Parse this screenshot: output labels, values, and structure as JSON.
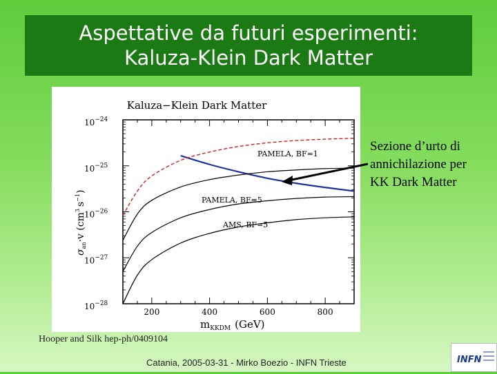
{
  "slide": {
    "title_line1": "Aspettative da futuri esperimenti:",
    "title_line2": "Kaluza-Klein Dark Matter",
    "annotation_line1": "Sezione d’urto di",
    "annotation_line2": "annichilazione per",
    "annotation_line3": "KK Dark Matter",
    "credit": "Hooper and Silk hep-ph/0409104",
    "footer": "Catania, 2005-03-31 - Mirko Boezio - INFN Trieste",
    "logo_text": "INFN"
  },
  "colors": {
    "title_bg": "#1c7a14",
    "blue_curve": "#1f2fa0",
    "red_curve": "#cc2222"
  },
  "chart_data": {
    "type": "line",
    "title": "Kaluza−Klein Dark Matter",
    "xlabel": "m",
    "xlabel_sub": "KKDM",
    "xlabel_unit": "(GeV)",
    "ylabel": "σ",
    "ylabel_sub": "an",
    "ylabel_rest": "·v (cm",
    "ylabel_sup": "3",
    "ylabel_end": "s",
    "ylabel_sup2": "−1",
    "ylabel_close": ")",
    "xlim": [
      100,
      900
    ],
    "ylim_log10": [
      -28,
      -24
    ],
    "y_scale": "log",
    "x_ticks": [
      "200",
      "400",
      "600",
      "800"
    ],
    "y_ticks": [
      {
        "base": "10",
        "exp": "−24"
      },
      {
        "base": "10",
        "exp": "−25"
      },
      {
        "base": "10",
        "exp": "−26"
      },
      {
        "base": "10",
        "exp": "−27"
      },
      {
        "base": "10",
        "exp": "−28"
      }
    ],
    "annotations": [
      "PAMELA, BF=1",
      "PAMELA, BF=5",
      "AMS, BF=5"
    ],
    "series": [
      {
        "role": "kkdm",
        "style": "solid-blue",
        "x": [
          300,
          400,
          500,
          600,
          700,
          800,
          900
        ],
        "log10y": [
          -24.78,
          -24.97,
          -25.13,
          -25.27,
          -25.38,
          -25.47,
          -25.55
        ]
      },
      {
        "role": "pamela_bf1",
        "style": "dashed-red",
        "x": [
          100,
          150,
          200,
          300,
          400,
          500,
          600,
          700,
          800,
          900
        ],
        "log10y": [
          -26.08,
          -25.55,
          -25.22,
          -24.88,
          -24.7,
          -24.58,
          -24.5,
          -24.45,
          -24.42,
          -24.4
        ]
      },
      {
        "role": "pamela_bf1_lower",
        "style": "solid-black",
        "x": [
          100,
          150,
          200,
          300,
          400,
          500,
          600,
          700,
          800,
          900
        ],
        "log10y": [
          -26.62,
          -26.05,
          -25.75,
          -25.46,
          -25.3,
          -25.2,
          -25.13,
          -25.09,
          -25.06,
          -25.05
        ]
      },
      {
        "role": "pamela_bf5",
        "style": "solid-black",
        "x": [
          100,
          150,
          200,
          300,
          400,
          500,
          600,
          700,
          800,
          900
        ],
        "log10y": [
          -27.3,
          -26.75,
          -26.45,
          -26.13,
          -25.95,
          -25.83,
          -25.76,
          -25.71,
          -25.68,
          -25.67
        ]
      },
      {
        "role": "ams_bf5",
        "style": "solid-black",
        "x": [
          100,
          150,
          200,
          300,
          400,
          500,
          600,
          700,
          800,
          900
        ],
        "log10y": [
          -28.0,
          -27.38,
          -27.04,
          -26.68,
          -26.47,
          -26.33,
          -26.24,
          -26.17,
          -26.13,
          -26.11
        ]
      }
    ]
  }
}
